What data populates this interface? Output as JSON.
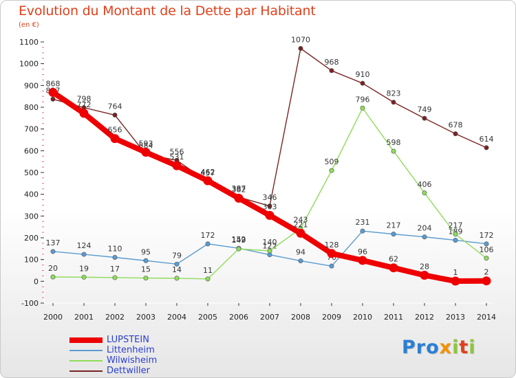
{
  "title": "Evolution du Montant de la Dette par Habitant",
  "subtitle": "(en €)",
  "logo": {
    "text": "Proxiti",
    "colors": [
      "#2a7fd4",
      "#f39200",
      "#8cc63f",
      "#e0401b"
    ]
  },
  "chart_data": {
    "type": "line",
    "title": "Evolution du Montant de la Dette par Habitant",
    "ylabel": "(en €)",
    "xlabel": "",
    "x": [
      2000,
      2001,
      2002,
      2003,
      2004,
      2005,
      2006,
      2007,
      2008,
      2009,
      2010,
      2011,
      2012,
      2013,
      2014
    ],
    "ylim": [
      -100,
      1100
    ],
    "yticks": [
      -100,
      0,
      100,
      200,
      300,
      400,
      500,
      600,
      700,
      800,
      900,
      1000,
      1100
    ],
    "grid": false,
    "legend_position": "bottom-left",
    "series": [
      {
        "name": "LUPSTEIN",
        "color": "#ee0000",
        "values": [
          868,
          772,
          656,
          593,
          531,
          462,
          382,
          303,
          221,
          128,
          96,
          62,
          28,
          1,
          2
        ]
      },
      {
        "name": "Littenheim",
        "color": "#5a9bd0",
        "values": [
          137,
          124,
          110,
          95,
          79,
          172,
          152,
          122,
          94,
          70,
          231,
          217,
          204,
          189,
          172
        ]
      },
      {
        "name": "Wilwisheim",
        "color": "#8edc5a",
        "values": [
          20,
          19,
          17,
          15,
          14,
          11,
          149,
          140,
          243,
          509,
          796,
          598,
          406,
          217,
          106
        ]
      },
      {
        "name": "Dettwiller",
        "color": "#7a2222",
        "values": [
          837,
          798,
          764,
          584,
          556,
          457,
          387,
          346,
          1070,
          968,
          910,
          823,
          749,
          678,
          614
        ]
      }
    ]
  }
}
